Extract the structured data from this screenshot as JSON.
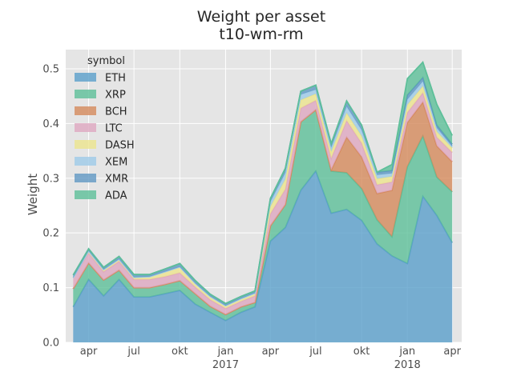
{
  "chart_data": {
    "type": "area",
    "title": "Weight per asset",
    "subtitle": "t10-wm-rm",
    "xlabel": "",
    "ylabel": "Weight",
    "stacked": true,
    "grid": true,
    "legend_title": "symbol",
    "legend_position": "top-left",
    "ylim": [
      0,
      0.535
    ],
    "xlim": [
      "2016-02-15",
      "2018-04-20"
    ],
    "yticks": [
      "0.0",
      "0.1",
      "0.2",
      "0.3",
      "0.4",
      "0.5"
    ],
    "xticks": [
      {
        "date": "2016-04-01",
        "label": "apr",
        "sublabel": ""
      },
      {
        "date": "2016-07-01",
        "label": "jul",
        "sublabel": ""
      },
      {
        "date": "2016-10-01",
        "label": "okt",
        "sublabel": ""
      },
      {
        "date": "2017-01-01",
        "label": "jan",
        "sublabel": "2017"
      },
      {
        "date": "2017-04-01",
        "label": "apr",
        "sublabel": ""
      },
      {
        "date": "2017-07-01",
        "label": "jul",
        "sublabel": ""
      },
      {
        "date": "2017-10-01",
        "label": "okt",
        "sublabel": ""
      },
      {
        "date": "2018-01-01",
        "label": "jan",
        "sublabel": "2018"
      },
      {
        "date": "2018-04-01",
        "label": "apr",
        "sublabel": ""
      }
    ],
    "x": [
      "2016-03-01",
      "2016-04-01",
      "2016-05-01",
      "2016-06-01",
      "2016-07-01",
      "2016-08-01",
      "2016-09-01",
      "2016-10-01",
      "2016-11-01",
      "2016-12-01",
      "2017-01-01",
      "2017-02-01",
      "2017-03-01",
      "2017-04-01",
      "2017-05-01",
      "2017-06-01",
      "2017-07-01",
      "2017-08-01",
      "2017-09-01",
      "2017-10-01",
      "2017-11-01",
      "2017-12-01",
      "2018-01-01",
      "2018-02-01",
      "2018-03-01",
      "2018-04-01"
    ],
    "series": [
      {
        "name": "ETH",
        "color": "#5a9fca",
        "values": [
          0.065,
          0.115,
          0.085,
          0.115,
          0.083,
          0.083,
          0.089,
          0.095,
          0.07,
          0.055,
          0.04,
          0.055,
          0.065,
          0.185,
          0.21,
          0.278,
          0.313,
          0.236,
          0.243,
          0.223,
          0.18,
          0.158,
          0.144,
          0.267,
          0.232,
          0.182
        ]
      },
      {
        "name": "XRP",
        "color": "#5dbf99",
        "values": [
          0.033,
          0.03,
          0.029,
          0.017,
          0.017,
          0.017,
          0.017,
          0.018,
          0.019,
          0.011,
          0.011,
          0.01,
          0.008,
          0.028,
          0.042,
          0.125,
          0.112,
          0.077,
          0.067,
          0.058,
          0.044,
          0.035,
          0.177,
          0.11,
          0.07,
          0.093
        ]
      },
      {
        "name": "BCH",
        "color": "#d58a5b",
        "values": [
          0,
          0,
          0,
          0,
          0,
          0,
          0,
          0,
          0,
          0,
          0,
          0,
          0,
          0,
          0,
          0,
          0,
          0.002,
          0.065,
          0.058,
          0.048,
          0.085,
          0.081,
          0.062,
          0.057,
          0.055
        ]
      },
      {
        "name": "LTC",
        "color": "#dea7c0",
        "values": [
          0.02,
          0.018,
          0.015,
          0.016,
          0.015,
          0.015,
          0.014,
          0.014,
          0.012,
          0.012,
          0.011,
          0.01,
          0.012,
          0.022,
          0.028,
          0.025,
          0.017,
          0.021,
          0.03,
          0.025,
          0.016,
          0.015,
          0.018,
          0.017,
          0.016,
          0.017
        ]
      },
      {
        "name": "DASH",
        "color": "#ece58d",
        "values": [
          0,
          0.004,
          0.004,
          0.004,
          0.004,
          0.005,
          0.009,
          0.011,
          0.007,
          0.006,
          0.005,
          0.005,
          0.005,
          0.013,
          0.018,
          0.015,
          0.012,
          0.012,
          0.014,
          0.013,
          0.011,
          0.01,
          0.014,
          0.012,
          0.01,
          0.008
        ]
      },
      {
        "name": "XEM",
        "color": "#9ecbe8",
        "values": [
          0,
          0,
          0,
          0,
          0,
          0,
          0,
          0,
          0,
          0,
          0,
          0,
          0,
          0.009,
          0.012,
          0.01,
          0.008,
          0.008,
          0.012,
          0.011,
          0.007,
          0.006,
          0.01,
          0.009,
          0.007,
          0.003
        ]
      },
      {
        "name": "XMR",
        "color": "#5f97c3",
        "values": [
          0.005,
          0.004,
          0.004,
          0.005,
          0.005,
          0.004,
          0.005,
          0.006,
          0.005,
          0.004,
          0.004,
          0.004,
          0.004,
          0.006,
          0.008,
          0.006,
          0.008,
          0.007,
          0.01,
          0.009,
          0.005,
          0.005,
          0.008,
          0.007,
          0.005,
          0.004
        ]
      },
      {
        "name": "ADA",
        "color": "#5dbf99",
        "values": [
          0,
          0,
          0,
          0,
          0,
          0,
          0,
          0,
          0,
          0,
          0,
          0,
          0,
          0,
          0,
          0,
          0,
          0,
          0,
          0,
          0,
          0.011,
          0.03,
          0.028,
          0.038,
          0.016
        ]
      }
    ]
  }
}
